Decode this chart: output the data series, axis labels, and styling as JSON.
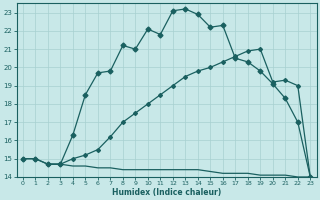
{
  "xlabel": "Humidex (Indice chaleur)",
  "bg_color": "#c8e8e8",
  "grid_color": "#a8d0d0",
  "line_color": "#1a6060",
  "xlim": [
    -0.5,
    23.5
  ],
  "ylim": [
    14,
    23.5
  ],
  "xticks": [
    0,
    1,
    2,
    3,
    4,
    5,
    6,
    7,
    8,
    9,
    10,
    11,
    12,
    13,
    14,
    15,
    16,
    17,
    18,
    19,
    20,
    21,
    22,
    23
  ],
  "yticks": [
    14,
    15,
    16,
    17,
    18,
    19,
    20,
    21,
    22,
    23
  ],
  "line1_x": [
    0,
    1,
    2,
    3,
    4,
    5,
    6,
    7,
    8,
    9,
    10,
    11,
    12,
    13,
    14,
    15,
    16,
    17,
    18,
    19,
    20,
    21,
    22,
    23
  ],
  "line1_y": [
    15.0,
    15.0,
    14.7,
    14.7,
    16.3,
    18.5,
    19.7,
    19.8,
    21.2,
    21.0,
    22.1,
    21.8,
    23.1,
    23.2,
    22.9,
    22.2,
    22.3,
    20.5,
    20.3,
    19.8,
    19.1,
    18.3,
    17.0,
    14.0
  ],
  "line2_x": [
    0,
    1,
    2,
    3,
    4,
    5,
    6,
    7,
    8,
    9,
    10,
    11,
    12,
    13,
    14,
    15,
    16,
    17,
    18,
    19,
    20,
    21,
    22,
    23
  ],
  "line2_y": [
    15.0,
    15.0,
    14.7,
    14.7,
    15.0,
    15.2,
    15.5,
    16.2,
    17.0,
    17.5,
    18.0,
    18.5,
    19.0,
    19.5,
    19.8,
    20.0,
    20.3,
    20.6,
    20.9,
    21.0,
    19.2,
    19.3,
    19.0,
    14.0
  ],
  "line3_x": [
    2,
    3,
    4,
    5,
    6,
    7,
    8,
    9,
    10,
    11,
    12,
    13,
    14,
    15,
    16,
    17,
    18,
    19,
    20,
    21,
    22,
    23
  ],
  "line3_y": [
    14.7,
    14.7,
    14.6,
    14.6,
    14.5,
    14.5,
    14.4,
    14.4,
    14.4,
    14.4,
    14.4,
    14.4,
    14.4,
    14.3,
    14.2,
    14.2,
    14.2,
    14.1,
    14.1,
    14.1,
    14.0,
    14.0
  ],
  "marker": "D",
  "markersize1": 2.5,
  "markersize2": 2.0,
  "linewidth": 0.9
}
